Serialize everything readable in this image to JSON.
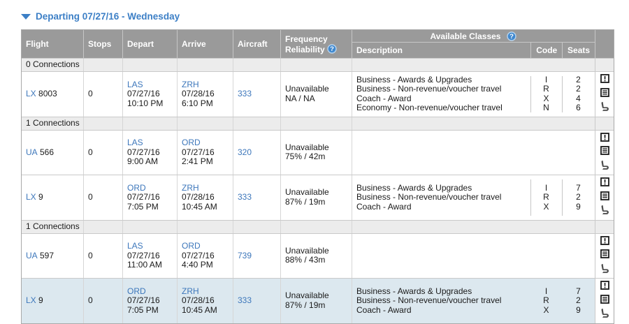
{
  "header_bar": {
    "title": "Departing 07/27/16 - Wednesday"
  },
  "colors": {
    "title_blue": "#3c7fc6",
    "link_blue": "#3d77bb",
    "header_gray": "#9a9a9a",
    "section_gray": "#ececec",
    "highlight_blue": "#dce8ef",
    "help_icon_blue": "#3f88cf"
  },
  "table": {
    "headers": {
      "flight": "Flight",
      "stops": "Stops",
      "depart": "Depart",
      "arrive": "Arrive",
      "aircraft": "Aircraft",
      "frequency_line1": "Frequency",
      "frequency_line2": "Reliability",
      "available_classes": "Available Classes",
      "description": "Description",
      "code": "Code",
      "seats": "Seats",
      "help_glyph": "?"
    },
    "row_action_icons": [
      "alert-icon",
      "flight-notes-icon",
      "seat-map-icon"
    ],
    "rows": [
      {
        "type": "section",
        "label": "0 Connections"
      },
      {
        "type": "flight",
        "carrier": "LX",
        "number": "8003",
        "stops": "0",
        "depart": {
          "airport": "LAS",
          "date": "07/27/16",
          "time": "10:10 PM"
        },
        "arrive": {
          "airport": "ZRH",
          "date": "07/28/16",
          "time": "6:10 PM"
        },
        "aircraft": "333",
        "frequency": {
          "line1": "Unavailable",
          "line2": "NA / NA"
        },
        "classes": [
          {
            "description": "Business - Awards & Upgrades",
            "code": "I",
            "seats": "2"
          },
          {
            "description": "Business - Non-revenue/voucher travel",
            "code": "R",
            "seats": "2"
          },
          {
            "description": "Coach - Award",
            "code": "X",
            "seats": "4"
          },
          {
            "description": "Economy - Non-revenue/voucher travel",
            "code": "N",
            "seats": "6"
          }
        ],
        "highlighted": false
      },
      {
        "type": "section",
        "label": "1 Connections"
      },
      {
        "type": "flight",
        "carrier": "UA",
        "number": "566",
        "stops": "0",
        "depart": {
          "airport": "LAS",
          "date": "07/27/16",
          "time": "9:00 AM"
        },
        "arrive": {
          "airport": "ORD",
          "date": "07/27/16",
          "time": "2:41 PM"
        },
        "aircraft": "320",
        "frequency": {
          "line1": "Unavailable",
          "line2": "75% / 42m"
        },
        "classes": [],
        "highlighted": false
      },
      {
        "type": "flight",
        "carrier": "LX",
        "number": "9",
        "stops": "0",
        "depart": {
          "airport": "ORD",
          "date": "07/27/16",
          "time": "7:05 PM"
        },
        "arrive": {
          "airport": "ZRH",
          "date": "07/28/16",
          "time": "10:45 AM"
        },
        "aircraft": "333",
        "frequency": {
          "line1": "Unavailable",
          "line2": "87% / 19m"
        },
        "classes": [
          {
            "description": "Business - Awards & Upgrades",
            "code": "I",
            "seats": "7"
          },
          {
            "description": "Business - Non-revenue/voucher travel",
            "code": "R",
            "seats": "2"
          },
          {
            "description": "Coach - Award",
            "code": "X",
            "seats": "9"
          }
        ],
        "highlighted": false
      },
      {
        "type": "section",
        "label": "1 Connections"
      },
      {
        "type": "flight",
        "carrier": "UA",
        "number": "597",
        "stops": "0",
        "depart": {
          "airport": "LAS",
          "date": "07/27/16",
          "time": "11:00 AM"
        },
        "arrive": {
          "airport": "ORD",
          "date": "07/27/16",
          "time": "4:40 PM"
        },
        "aircraft": "739",
        "frequency": {
          "line1": "Unavailable",
          "line2": "88% / 43m"
        },
        "classes": [],
        "highlighted": false
      },
      {
        "type": "flight",
        "carrier": "LX",
        "number": "9",
        "stops": "0",
        "depart": {
          "airport": "ORD",
          "date": "07/27/16",
          "time": "7:05 PM"
        },
        "arrive": {
          "airport": "ZRH",
          "date": "07/28/16",
          "time": "10:45 AM"
        },
        "aircraft": "333",
        "frequency": {
          "line1": "Unavailable",
          "line2": "87% / 19m"
        },
        "classes": [
          {
            "description": "Business - Awards & Upgrades",
            "code": "I",
            "seats": "7"
          },
          {
            "description": "Business - Non-revenue/voucher travel",
            "code": "R",
            "seats": "2"
          },
          {
            "description": "Coach - Award",
            "code": "X",
            "seats": "9"
          }
        ],
        "highlighted": true
      }
    ]
  }
}
